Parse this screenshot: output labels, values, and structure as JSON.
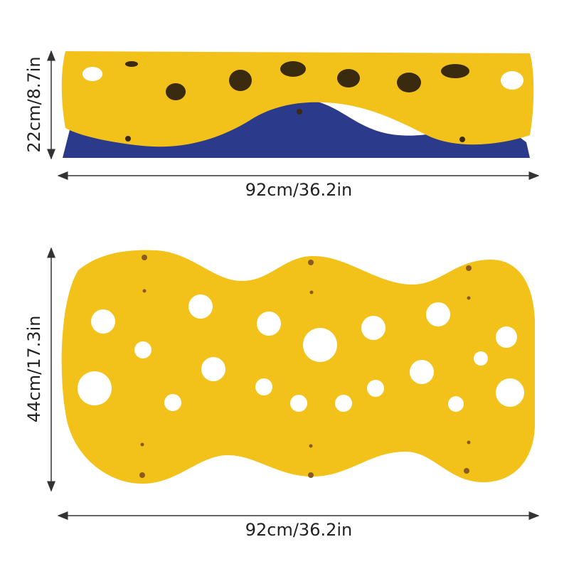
{
  "dimensions": {
    "top_height": "22cm/8.7in",
    "top_width": "92cm/36.2in",
    "bottom_height": "44cm/17.3in",
    "bottom_width": "92cm/36.2in"
  },
  "colors": {
    "sheet_yellow": "#F2C21B",
    "base_blue": "#2B3A8A",
    "hole_dark": "#3a2a10",
    "arrow": "#333333"
  }
}
